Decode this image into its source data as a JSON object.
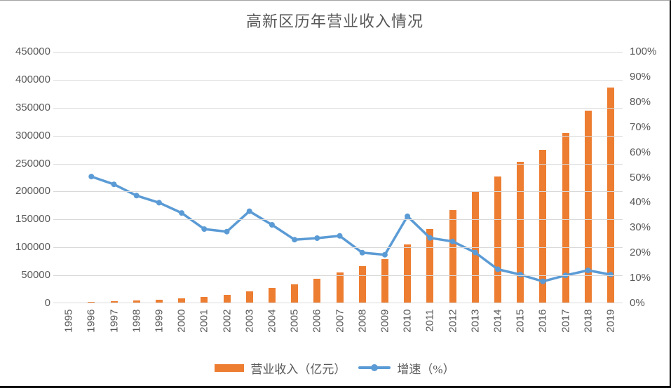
{
  "chart_data": {
    "type": "bar",
    "combo": "bar+line",
    "title": "高新区历年营业收入情况",
    "categories": [
      "1995",
      "1996",
      "1997",
      "1998",
      "1999",
      "2000",
      "2001",
      "2002",
      "2003",
      "2004",
      "2005",
      "2006",
      "2007",
      "2008",
      "2009",
      "2010",
      "2011",
      "2012",
      "2013",
      "2014",
      "2015",
      "2016",
      "2017",
      "2018",
      "2019"
    ],
    "series": [
      {
        "name": "营业收入（亿元）",
        "type": "bar",
        "axis": "left",
        "color": "#ED7D31",
        "values": [
          1500,
          2300,
          3400,
          4800,
          6800,
          9200,
          11900,
          15300,
          20900,
          27500,
          34400,
          43300,
          54900,
          66000,
          78700,
          105900,
          133400,
          166300,
          199900,
          226800,
          252700,
          274700,
          305200,
          345200,
          385700
        ]
      },
      {
        "name": "增速（%）",
        "type": "line",
        "axis": "right",
        "color": "#5B9BD5",
        "values": [
          null,
          50.4,
          47.3,
          42.8,
          40.0,
          35.9,
          29.5,
          28.5,
          36.6,
          31.2,
          25.3,
          25.9,
          26.8,
          20.1,
          19.3,
          34.6,
          26.0,
          24.6,
          20.2,
          13.5,
          11.4,
          8.7,
          11.1,
          13.1,
          11.4
        ]
      }
    ],
    "left_axis": {
      "min": 0,
      "max": 450000,
      "step": 50000,
      "tick_labels_top_to_bottom": [
        "450000",
        "400000",
        "350000",
        "300000",
        "250000",
        "200000",
        "150000",
        "100000",
        "50000",
        "0"
      ]
    },
    "right_axis": {
      "min": 0,
      "max": 100,
      "step": 10,
      "tick_labels_top_to_bottom": [
        "100%",
        "90%",
        "80%",
        "70%",
        "60%",
        "50%",
        "40%",
        "30%",
        "20%",
        "10%",
        "0%"
      ]
    },
    "grid": true,
    "grid_color": "#D9D9D9",
    "text_color": "#595959",
    "legend_position": "bottom"
  }
}
